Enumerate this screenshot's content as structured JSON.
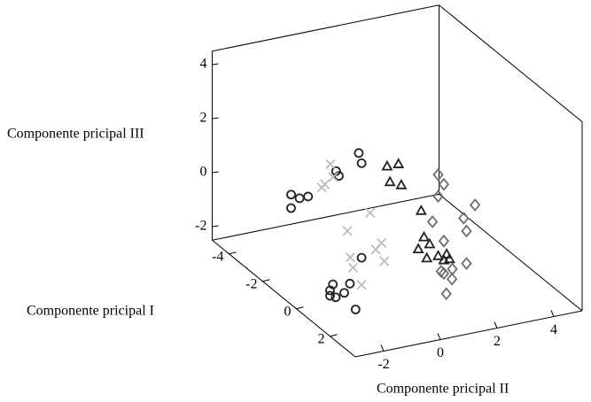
{
  "chart_data": {
    "type": "scatter3d",
    "xlabel": "Componente pricipal II",
    "ylabel": "Componente pricipal I",
    "zlabel": "Componente pricipal III",
    "xlim": [
      -3,
      5
    ],
    "ylim": [
      -5,
      3.5
    ],
    "zlim": [
      -2.5,
      4.5
    ],
    "xticks": [
      -2,
      0,
      2,
      4
    ],
    "yticks": [
      -4,
      -2,
      0,
      2
    ],
    "zticks": [
      -2,
      0,
      2,
      4
    ],
    "series": [
      {
        "marker": "circle",
        "color": "#222222",
        "x": [
          -2.0,
          -1.7,
          -1.4,
          -2.0,
          -1.6,
          -1.5,
          -0.8,
          -0.7,
          -0.7,
          -2.3,
          -2.9,
          -3.0,
          -2.8,
          -2.5,
          -2.1,
          -3.0
        ],
        "y": [
          -2,
          -2,
          -2,
          -2,
          0,
          0,
          0,
          0,
          0,
          2,
          2,
          2,
          2,
          2,
          2,
          2
        ],
        "z": [
          0.5,
          0.3,
          0.3,
          0.0,
          2.3,
          2.1,
          2.8,
          2.4,
          -1.1,
          -0.7,
          -0.6,
          -0.8,
          -1.1,
          -1.0,
          -1.7,
          -1.0
        ]
      },
      {
        "marker": "triangle",
        "color": "#222222",
        "x": [
          0.2,
          0.6,
          0.3,
          0.7,
          1.4,
          1.5,
          1.7,
          1.3,
          1.6,
          2.0,
          2.3,
          2.2,
          2.4
        ],
        "y": [
          0,
          0,
          0,
          0,
          0,
          0,
          0,
          0,
          0,
          0,
          0,
          0,
          0
        ],
        "z": [
          2.1,
          2.1,
          1.5,
          1.3,
          0.2,
          -0.8,
          -1.1,
          -1.2,
          -1.6,
          -1.6,
          -1.6,
          -1.8,
          -1.8
        ]
      },
      {
        "marker": "diamond",
        "color": "#6e6e6e",
        "x": [
          2.0,
          2.2,
          2.0,
          3.3,
          1.8,
          2.9,
          3.0,
          2.2,
          2.5,
          2.2,
          3.0,
          1.1,
          1.3,
          2.1
        ],
        "y": [
          0,
          0,
          0,
          0,
          0,
          0,
          0,
          0,
          0,
          0,
          0,
          2,
          2,
          0
        ],
        "z": [
          1.4,
          1.0,
          0.6,
          0.0,
          -0.3,
          -0.4,
          -0.9,
          -1.1,
          -2.2,
          -2.3,
          -2.1,
          -1.8,
          -1.3,
          -2.2
        ]
      },
      {
        "marker": "cross",
        "color": "#bdbdbd",
        "x": [
          -1.8,
          -1.7,
          -2.0,
          -2.1,
          -0.4,
          -1.2,
          0.0,
          -0.2,
          0.1,
          -1.1,
          -1.0,
          -0.7
        ],
        "y": [
          0,
          0,
          0,
          0,
          0,
          0,
          0,
          0,
          0,
          0,
          0,
          0
        ],
        "z": [
          2.6,
          2.1,
          1.9,
          1.8,
          0.5,
          0.0,
          -0.7,
          -0.9,
          -1.4,
          -1.0,
          -1.4,
          -2.1
        ]
      }
    ]
  }
}
